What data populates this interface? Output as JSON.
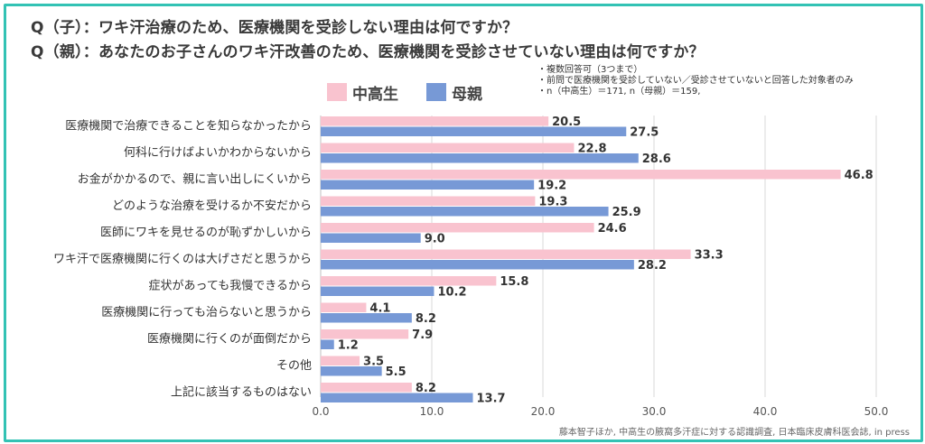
{
  "title_lines": [
    "Q（子）：ワキ汗治療のため、医療機関を受診しない理由は何ですか？",
    "Q（親）：あなたのお子さんのワキ汗改善のため、医療機関を受診させていない理由は何ですか？"
  ],
  "notes": [
    "・複数回答可（3つまで）",
    "・前問で医療機関を受診していない／受診させていないと回答した対象者のみ",
    "・n（中高生）＝171, n（母親）＝159,"
  ],
  "source": "藤本智子ほか, 中高生の腋窩多汗症に対する認識調査, 日本臨床皮膚科医会誌, in press",
  "colors": {
    "frame": "#33c2b4",
    "student": "#f9c3cf",
    "mother": "#7799d6"
  },
  "chart_data": {
    "type": "bar",
    "orientation": "horizontal",
    "categories": [
      "医療機関で治療できることを知らなかったから",
      "何科に行けばよいかわからないから",
      "お金がかかるので、親に言い出しにくいから",
      "どのような治療を受けるか不安だから",
      "医師にワキを見せるのが恥ずかしいから",
      "ワキ汗で医療機関に行くのは大げさだと思うから",
      "症状があっても我慢できるから",
      "医療機関に行っても治らないと思うから",
      "医療機関に行くのが面倒だから",
      "その他",
      "上記に該当するものはない"
    ],
    "series": [
      {
        "name": "中高生",
        "values": [
          20.5,
          22.8,
          46.8,
          19.3,
          24.6,
          33.3,
          15.8,
          4.1,
          7.9,
          3.5,
          8.2
        ]
      },
      {
        "name": "母親",
        "values": [
          27.5,
          28.6,
          19.2,
          25.9,
          9.0,
          28.2,
          10.2,
          8.2,
          1.2,
          5.5,
          13.7
        ]
      }
    ],
    "xlim": [
      0,
      50
    ],
    "xticks": [
      "0.0",
      "10.0",
      "20.0",
      "30.0",
      "40.0",
      "50.0"
    ],
    "grid": true,
    "legend_position": "top-left"
  }
}
